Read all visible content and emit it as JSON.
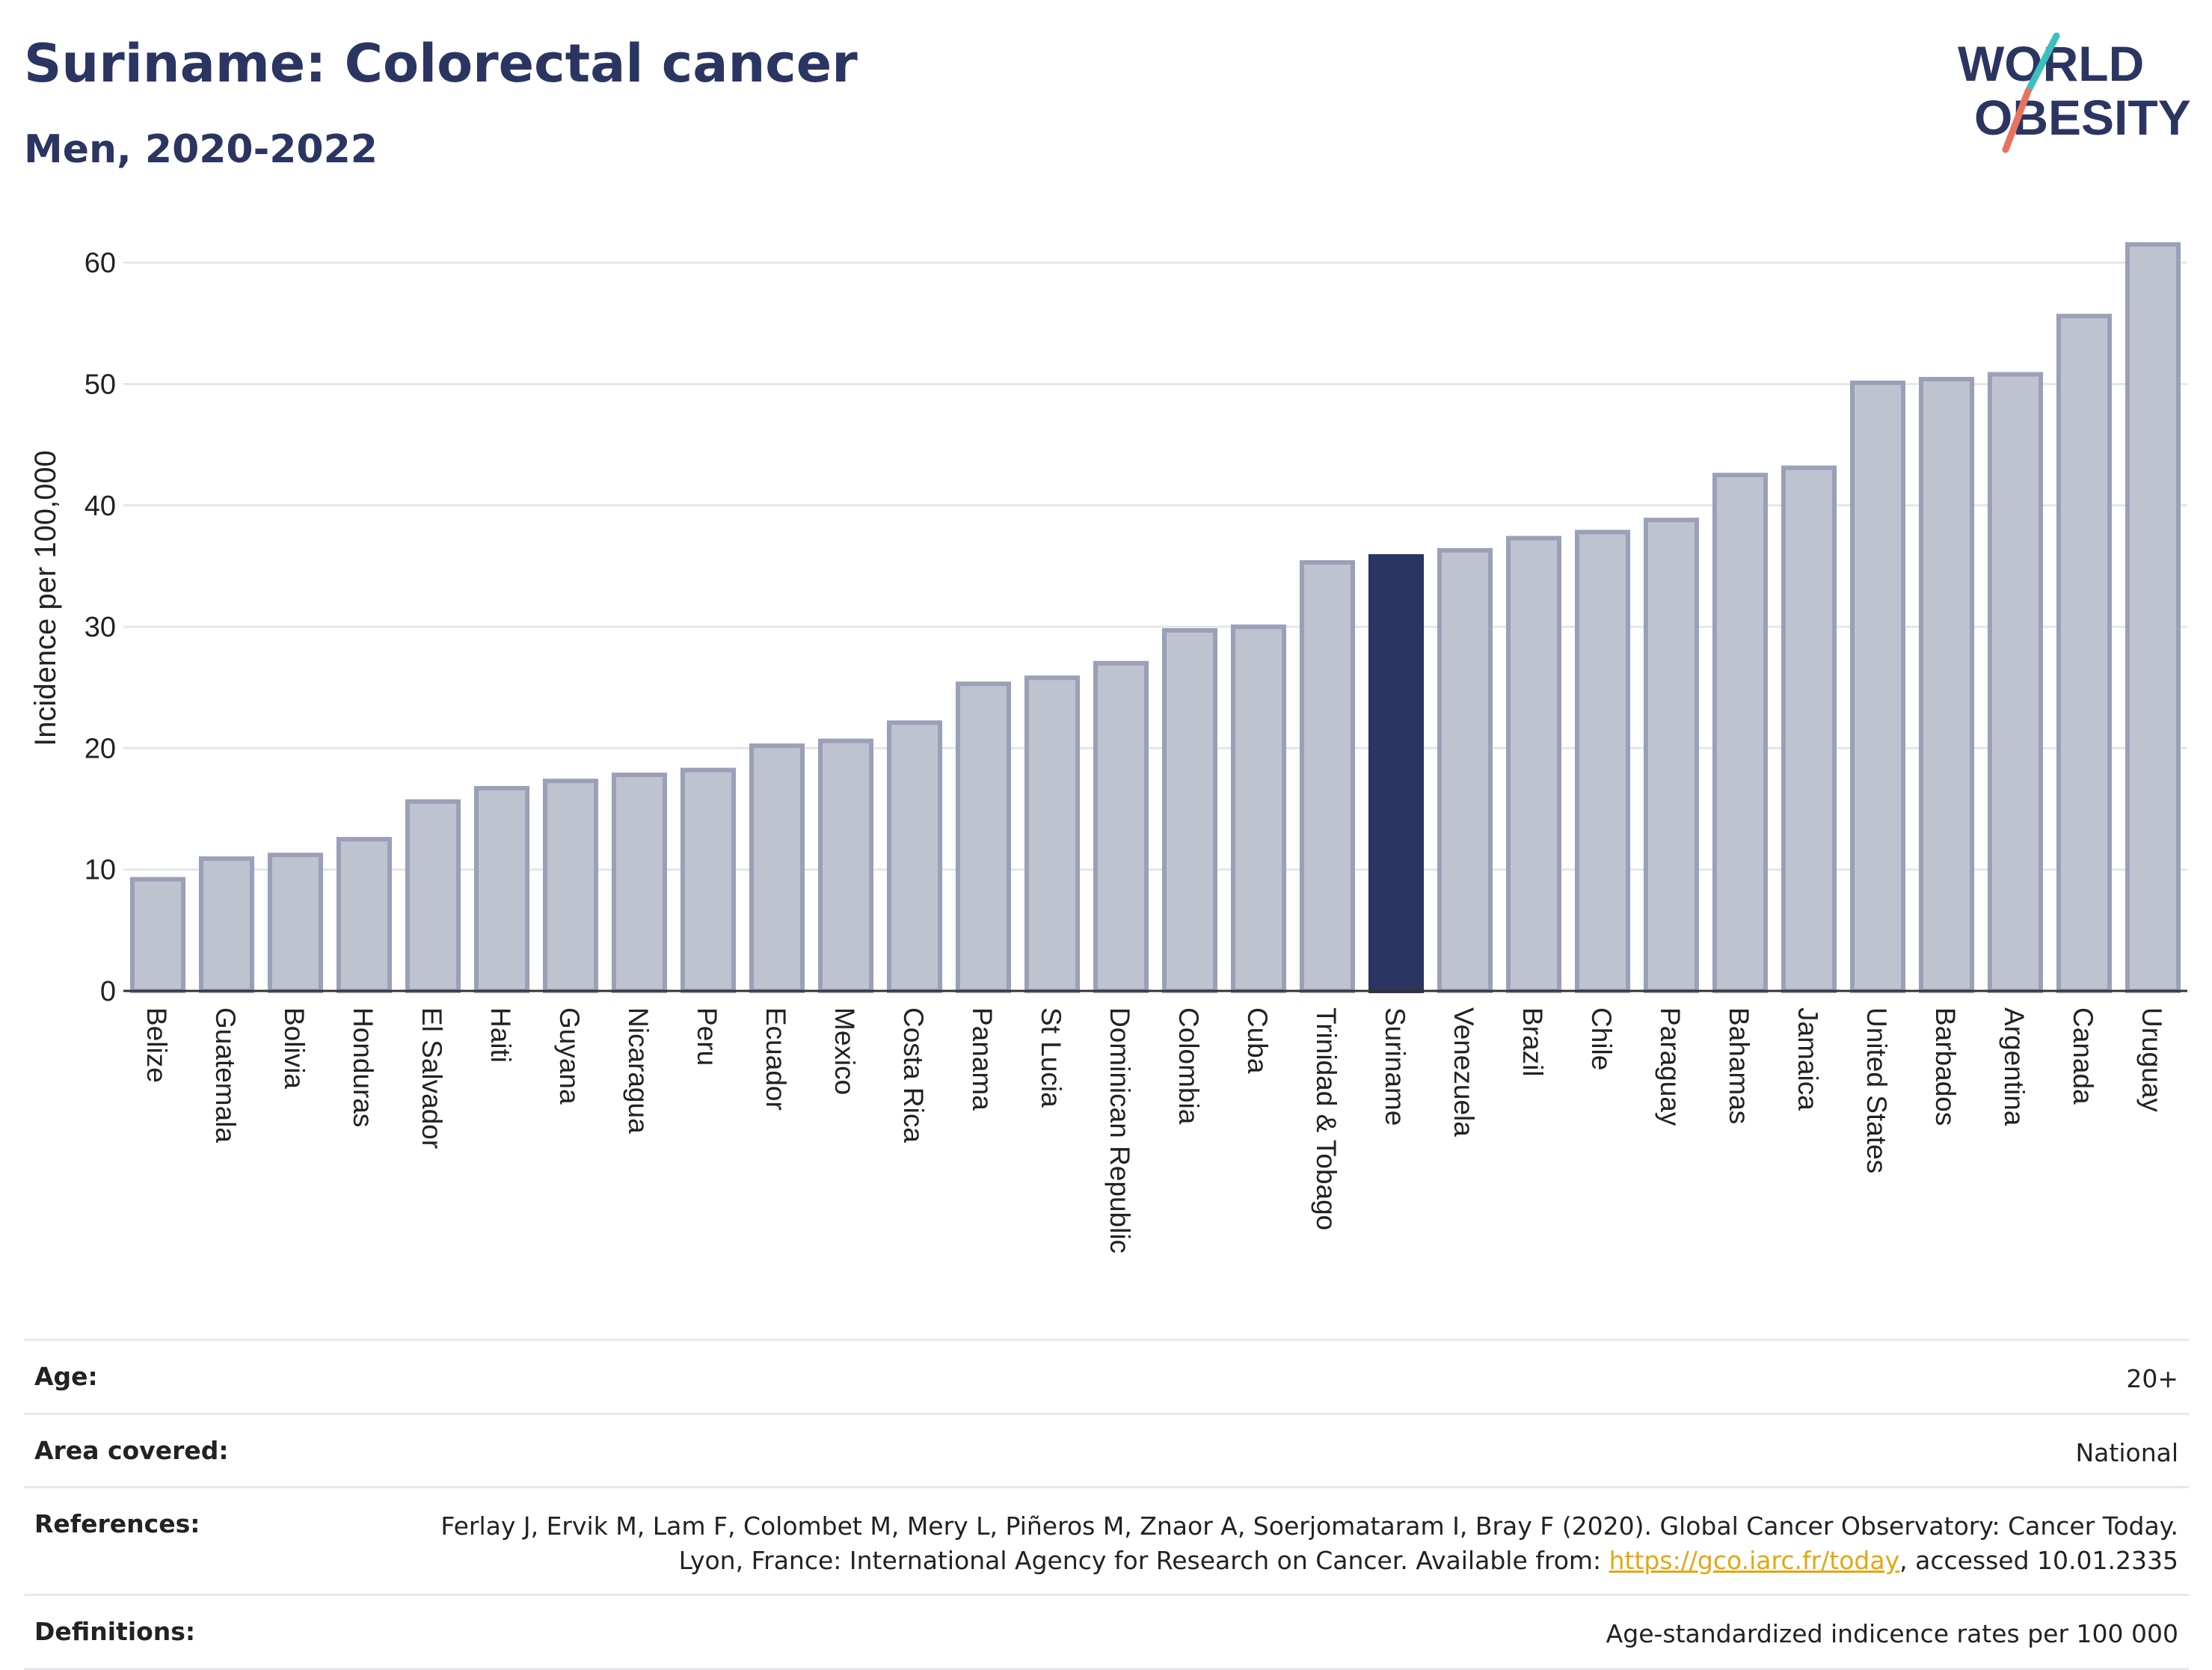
{
  "header": {
    "title": "Suriname: Colorectal cancer",
    "subtitle": "Men, 2020-2022"
  },
  "logo": {
    "line1": "WORLD",
    "line2": "OBESITY",
    "accent_teal": "#3bbfbf",
    "accent_coral": "#e8735f",
    "text_color": "#2b3561"
  },
  "chart_data": {
    "type": "bar",
    "title": "Suriname: Colorectal cancer",
    "subtitle": "Men, 2020-2022",
    "xlabel": "",
    "ylabel": "Incidence per 100,000",
    "ylim": [
      0,
      65
    ],
    "yticks": [
      0,
      10,
      20,
      30,
      40,
      50,
      60
    ],
    "grid": true,
    "highlight": "Suriname",
    "colors": {
      "bar": "#bfc3d0",
      "bar_edge": "#9aa0b8",
      "highlight": "#2b3561"
    },
    "categories": [
      "Belize",
      "Guatemala",
      "Bolivia",
      "Honduras",
      "El Salvador",
      "Haiti",
      "Guyana",
      "Nicaragua",
      "Peru",
      "Ecuador",
      "Mexico",
      "Costa Rica",
      "Panama",
      "St Lucia",
      "Dominican Republic",
      "Colombia",
      "Cuba",
      "Trinidad & Tobago",
      "Suriname",
      "Venezuela",
      "Brazil",
      "Chile",
      "Paraguay",
      "Bahamas",
      "Jamaica",
      "United States",
      "Barbados",
      "Argentina",
      "Canada",
      "Uruguay"
    ],
    "values": [
      9.2,
      10.9,
      11.2,
      12.5,
      15.6,
      16.7,
      17.3,
      17.8,
      18.2,
      20.2,
      20.6,
      22.1,
      25.3,
      25.8,
      27.0,
      29.7,
      30.0,
      35.3,
      35.8,
      36.3,
      37.3,
      37.8,
      38.8,
      42.5,
      43.1,
      50.1,
      50.4,
      50.8,
      55.6,
      61.5
    ]
  },
  "info": {
    "age_label": "Age:",
    "age_value": "20+",
    "area_label": "Area covered:",
    "area_value": "National",
    "references_label": "References:",
    "references_text_1": "Ferlay J, Ervik M, Lam F, Colombet M, Mery L, Piñeros M, Znaor A, Soerjomataram I, Bray F (2020). Global Cancer Observatory: Cancer Today. Lyon, France: International Agency for Research on Cancer. Available from: ",
    "references_link": "https://gco.iarc.fr/today",
    "references_text_2": ", accessed 10.01.2335",
    "definitions_label": "Definitions:",
    "definitions_value": "Age-standardized indicence rates per 100 000"
  }
}
